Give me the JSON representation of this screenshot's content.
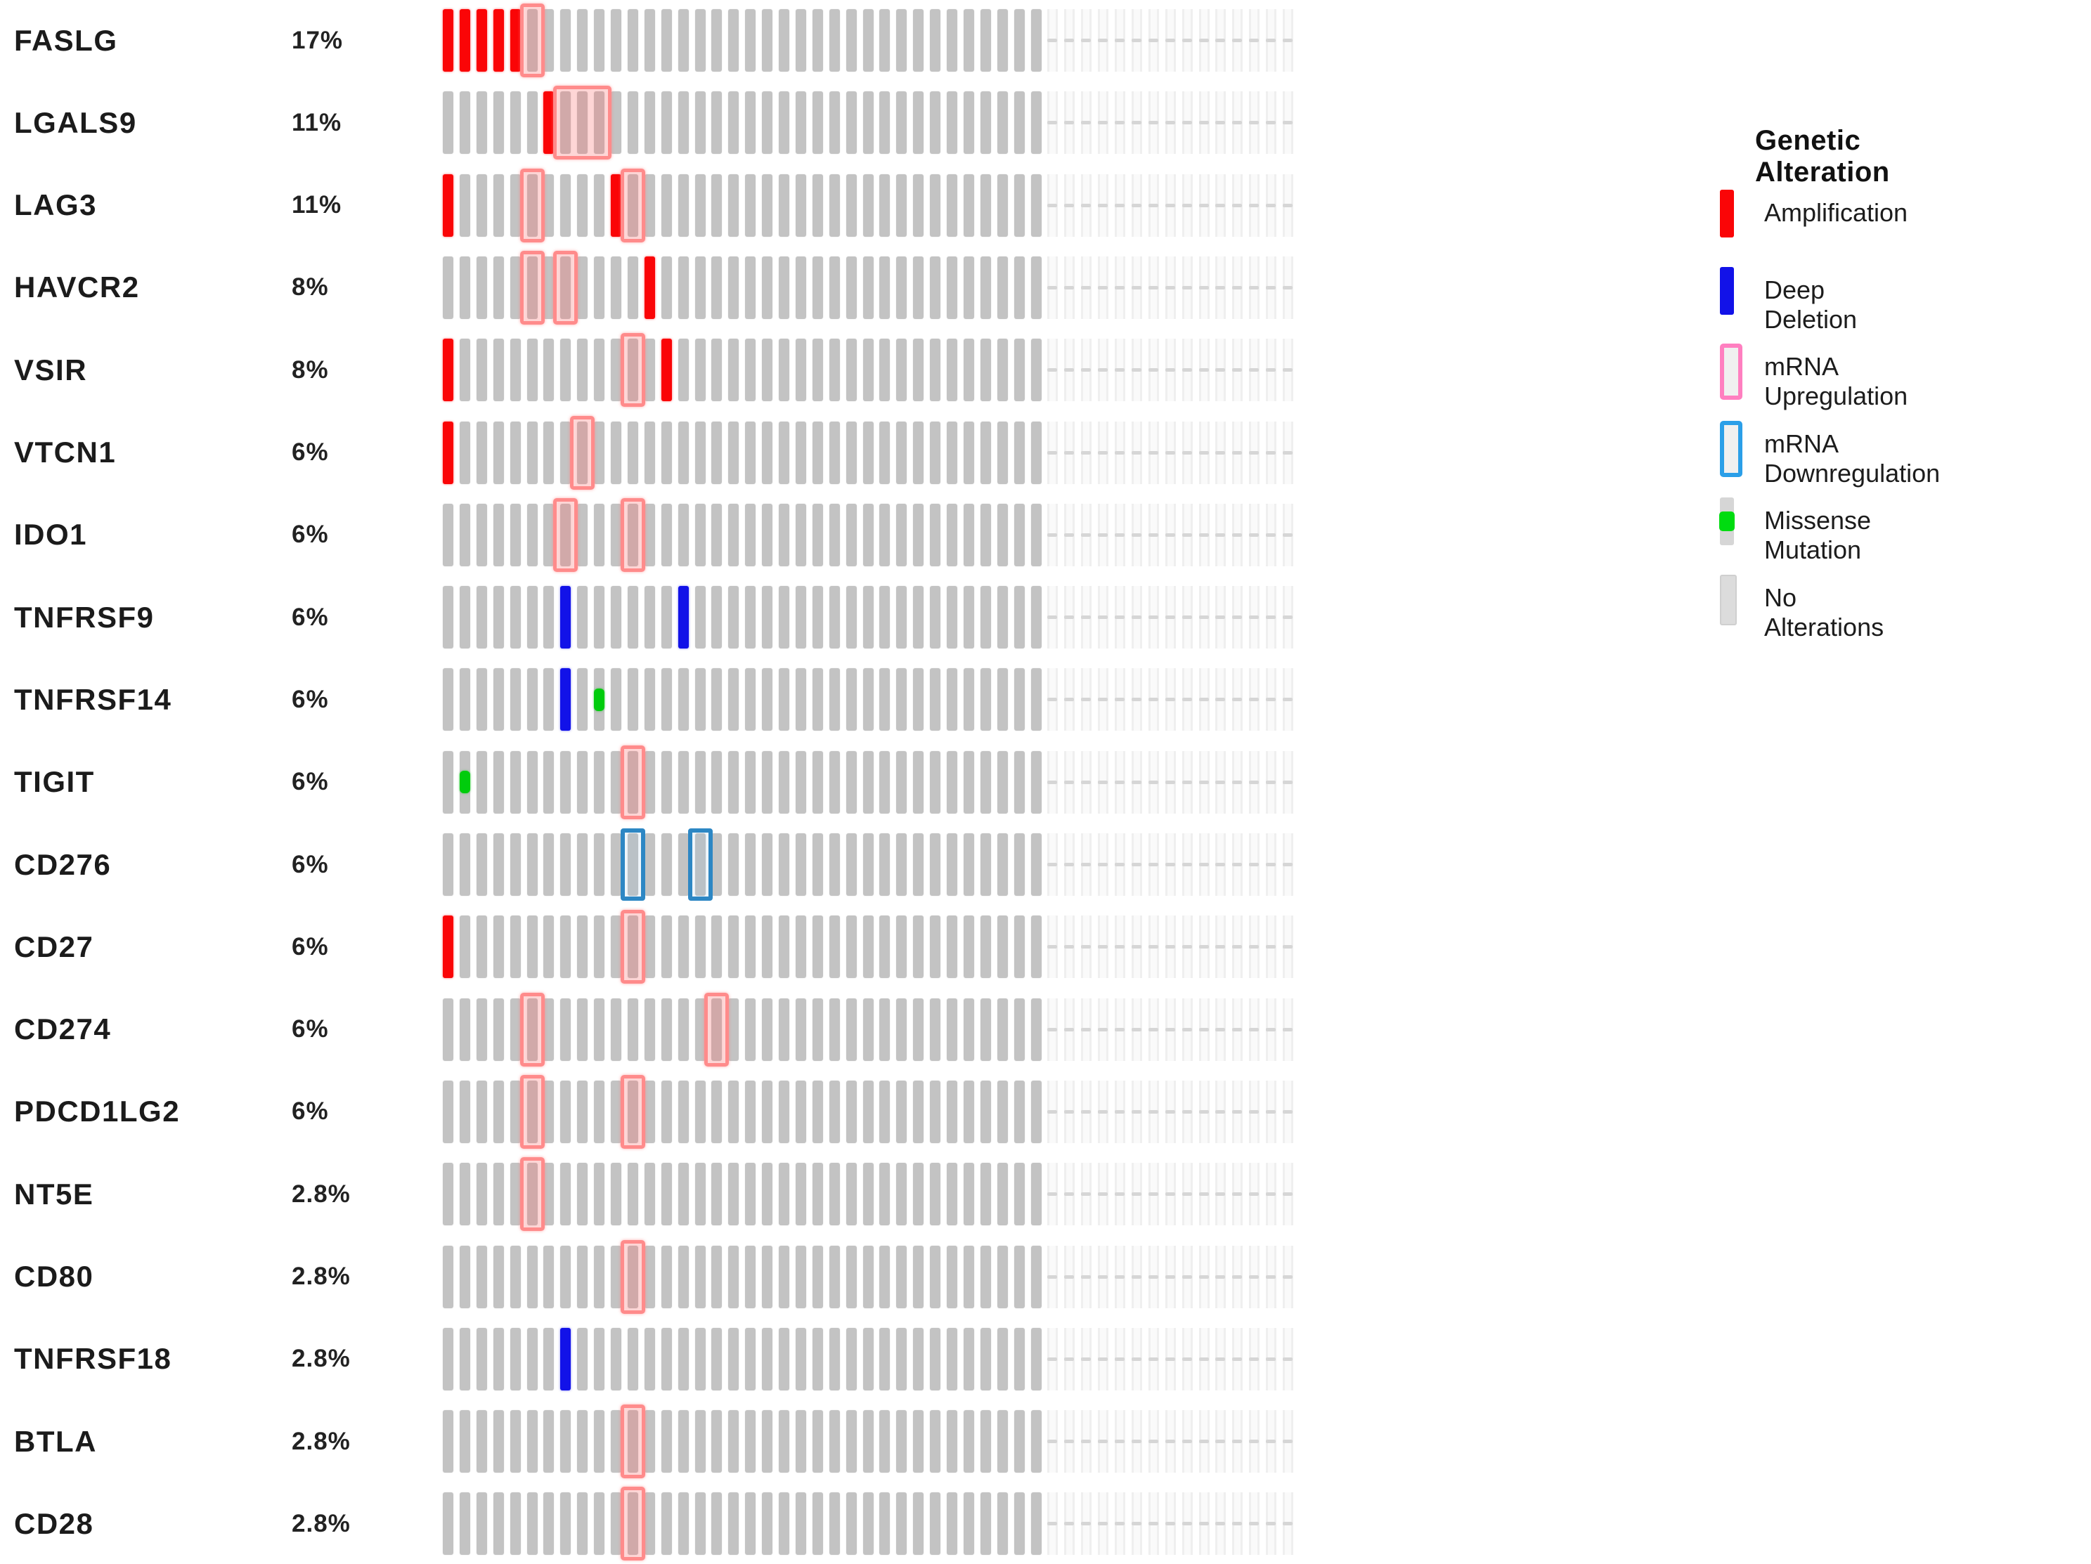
{
  "chart_data": {
    "type": "oncoprint",
    "description": "Oncoprint of genetic alterations in immune checkpoint genes",
    "samples_shown": 36,
    "samples_faded": 15,
    "legend": {
      "title": "Genetic Alteration",
      "items": [
        {
          "key": "amp",
          "label": "Amplification",
          "color": "#FA0507",
          "swatch": "solid"
        },
        {
          "key": "del",
          "label": "Deep Deletion",
          "color": "#1212E8",
          "swatch": "solid"
        },
        {
          "key": "up",
          "label": "mRNA Upregulation",
          "color": "#FF7FC0",
          "swatch": "outline"
        },
        {
          "key": "down",
          "label": "mRNA Downregulation",
          "color": "#2B9FE8",
          "swatch": "outline"
        },
        {
          "key": "mis",
          "label": "Missense Mutation",
          "color": "#00DC10",
          "swatch": "square"
        },
        {
          "key": "none",
          "label": "No Alterations",
          "color": "#C3C3C3",
          "swatch": "solid"
        }
      ]
    },
    "colors": {
      "amplification": "#FA0507",
      "deep_deletion": "#1212E8",
      "no_alteration": "#C3C3C3",
      "mrna_up_border": "#FF8B8B",
      "mrna_down_border": "#2D87C4",
      "missense": "#00CC0C",
      "faint_dash": "#D6D6D6",
      "text": "#1B1B1B"
    },
    "genes": [
      {
        "name": "FASLG",
        "pct": "17%",
        "alts": [
          {
            "pos": 1,
            "type": "amp"
          },
          {
            "pos": 2,
            "type": "amp"
          },
          {
            "pos": 3,
            "type": "amp"
          },
          {
            "pos": 4,
            "type": "amp"
          },
          {
            "pos": 5,
            "type": "amp"
          },
          {
            "pos": 6,
            "type": "up"
          }
        ]
      },
      {
        "name": "LGALS9",
        "pct": "11%",
        "alts": [
          {
            "pos": 7,
            "type": "amp"
          },
          {
            "pos": 8,
            "type": "up",
            "span": 3
          }
        ]
      },
      {
        "name": "LAG3",
        "pct": "11%",
        "alts": [
          {
            "pos": 1,
            "type": "amp"
          },
          {
            "pos": 6,
            "type": "up"
          },
          {
            "pos": 11,
            "type": "amp"
          },
          {
            "pos": 12,
            "type": "up"
          }
        ]
      },
      {
        "name": "HAVCR2",
        "pct": "8%",
        "alts": [
          {
            "pos": 6,
            "type": "up"
          },
          {
            "pos": 8,
            "type": "up"
          },
          {
            "pos": 13,
            "type": "amp"
          }
        ]
      },
      {
        "name": "VSIR",
        "pct": "8%",
        "alts": [
          {
            "pos": 1,
            "type": "amp"
          },
          {
            "pos": 12,
            "type": "up"
          },
          {
            "pos": 14,
            "type": "amp"
          }
        ]
      },
      {
        "name": "VTCN1",
        "pct": "6%",
        "alts": [
          {
            "pos": 1,
            "type": "amp"
          },
          {
            "pos": 9,
            "type": "up"
          }
        ]
      },
      {
        "name": "IDO1",
        "pct": "6%",
        "alts": [
          {
            "pos": 8,
            "type": "up"
          },
          {
            "pos": 12,
            "type": "up"
          }
        ]
      },
      {
        "name": "TNFRSF9",
        "pct": "6%",
        "alts": [
          {
            "pos": 8,
            "type": "del"
          },
          {
            "pos": 15,
            "type": "del"
          }
        ]
      },
      {
        "name": "TNFRSF14",
        "pct": "6%",
        "alts": [
          {
            "pos": 8,
            "type": "del"
          },
          {
            "pos": 10,
            "type": "mis"
          }
        ]
      },
      {
        "name": "TIGIT",
        "pct": "6%",
        "alts": [
          {
            "pos": 2,
            "type": "mis"
          },
          {
            "pos": 12,
            "type": "up"
          }
        ]
      },
      {
        "name": "CD276",
        "pct": "6%",
        "alts": [
          {
            "pos": 12,
            "type": "down"
          },
          {
            "pos": 16,
            "type": "down"
          }
        ]
      },
      {
        "name": "CD27",
        "pct": "6%",
        "alts": [
          {
            "pos": 1,
            "type": "amp"
          },
          {
            "pos": 12,
            "type": "up"
          }
        ]
      },
      {
        "name": "CD274",
        "pct": "6%",
        "alts": [
          {
            "pos": 6,
            "type": "up"
          },
          {
            "pos": 17,
            "type": "up"
          }
        ]
      },
      {
        "name": "PDCD1LG2",
        "pct": "6%",
        "alts": [
          {
            "pos": 6,
            "type": "up"
          },
          {
            "pos": 12,
            "type": "up"
          }
        ]
      },
      {
        "name": "NT5E",
        "pct": "2.8%",
        "alts": [
          {
            "pos": 6,
            "type": "up"
          }
        ]
      },
      {
        "name": "CD80",
        "pct": "2.8%",
        "alts": [
          {
            "pos": 12,
            "type": "up"
          }
        ]
      },
      {
        "name": "TNFRSF18",
        "pct": "2.8%",
        "alts": [
          {
            "pos": 8,
            "type": "del"
          }
        ]
      },
      {
        "name": "BTLA",
        "pct": "2.8%",
        "alts": [
          {
            "pos": 12,
            "type": "up"
          }
        ]
      },
      {
        "name": "CD28",
        "pct": "2.8%",
        "alts": [
          {
            "pos": 12,
            "type": "up"
          }
        ]
      }
    ]
  }
}
